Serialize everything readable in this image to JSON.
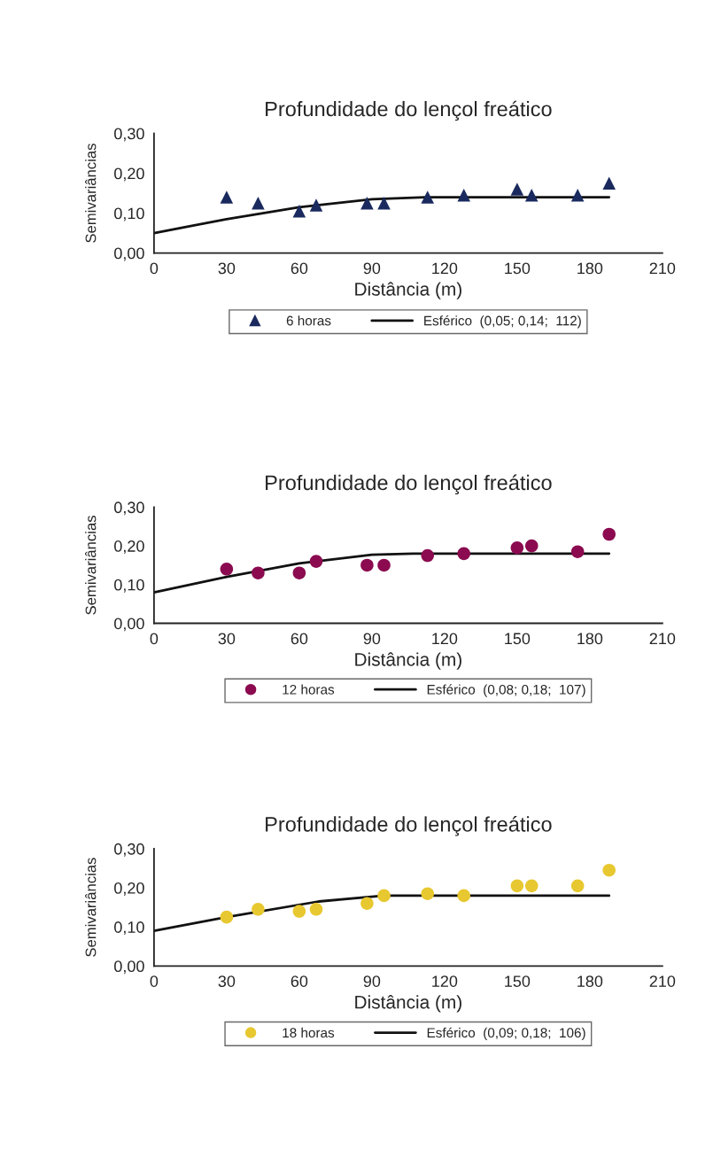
{
  "chart_data": [
    {
      "type": "scatter",
      "title": "Profundidade do lençol freático",
      "xlabel": "Distância (m)",
      "ylabel": "Semivariâncias",
      "xlim": [
        0,
        210
      ],
      "xticks": [
        0,
        30,
        60,
        90,
        120,
        150,
        180,
        210
      ],
      "ylim": [
        0,
        0.3
      ],
      "yticks": [
        {
          "value": 0,
          "label": "0,00"
        },
        {
          "value": 0.1,
          "label": "0,10"
        },
        {
          "value": 0.2,
          "label": "0,20"
        },
        {
          "value": 0.3,
          "label": "0,30"
        }
      ],
      "grid": false,
      "legend": "bottom",
      "series": [
        {
          "name": "6 horas",
          "marker": "triangle",
          "color": "#1a2a5e",
          "x": [
            30,
            43,
            60,
            67,
            88,
            95,
            113,
            128,
            150,
            156,
            175,
            188
          ],
          "values": [
            0.14,
            0.125,
            0.105,
            0.12,
            0.125,
            0.125,
            0.14,
            0.145,
            0.16,
            0.145,
            0.145,
            0.175
          ]
        },
        {
          "name": "Esférico  (0,05; 0,14;  112)",
          "type": "line",
          "marker": "none",
          "color": "#111111",
          "x": [
            0,
            30,
            60,
            90,
            112,
            188
          ],
          "values": [
            0.05,
            0.085,
            0.115,
            0.135,
            0.14,
            0.14
          ]
        }
      ]
    },
    {
      "type": "scatter",
      "title": "Profundidade do lençol freático",
      "xlabel": "Distância (m)",
      "ylabel": "Semivariâncias",
      "xlim": [
        0,
        210
      ],
      "xticks": [
        0,
        30,
        60,
        90,
        120,
        150,
        180,
        210
      ],
      "ylim": [
        0,
        0.3
      ],
      "yticks": [
        {
          "value": 0,
          "label": "0,00"
        },
        {
          "value": 0.1,
          "label": "0,10"
        },
        {
          "value": 0.2,
          "label": "0,20"
        },
        {
          "value": 0.3,
          "label": "0,30"
        }
      ],
      "grid": false,
      "legend": "bottom",
      "series": [
        {
          "name": "12 horas",
          "marker": "circle",
          "color": "#8b0a50",
          "x": [
            30,
            43,
            60,
            67,
            88,
            95,
            113,
            128,
            150,
            156,
            175,
            188
          ],
          "values": [
            0.14,
            0.13,
            0.13,
            0.16,
            0.15,
            0.15,
            0.175,
            0.18,
            0.195,
            0.2,
            0.185,
            0.23
          ]
        },
        {
          "name": "Esférico  (0,08; 0,18;  107)",
          "type": "line",
          "marker": "none",
          "color": "#111111",
          "x": [
            0,
            30,
            60,
            90,
            107,
            188
          ],
          "values": [
            0.08,
            0.12,
            0.155,
            0.177,
            0.18,
            0.18
          ]
        }
      ]
    },
    {
      "type": "scatter",
      "title": "Profundidade do lençol freático",
      "xlabel": "Distância (m)",
      "ylabel": "Semivariâncias",
      "xlim": [
        0,
        210
      ],
      "xticks": [
        0,
        30,
        60,
        90,
        120,
        150,
        180,
        210
      ],
      "ylim": [
        0,
        0.3
      ],
      "yticks": [
        {
          "value": 0,
          "label": "0,00"
        },
        {
          "value": 0.1,
          "label": "0,10"
        },
        {
          "value": 0.2,
          "label": "0,20"
        },
        {
          "value": 0.3,
          "label": "0,30"
        }
      ],
      "grid": false,
      "legend": "bottom",
      "series": [
        {
          "name": "18 horas",
          "marker": "circle",
          "color": "#e8c830",
          "x": [
            30,
            43,
            60,
            67,
            88,
            95,
            113,
            128,
            150,
            156,
            175,
            188
          ],
          "values": [
            0.125,
            0.145,
            0.14,
            0.145,
            0.16,
            0.18,
            0.185,
            0.18,
            0.205,
            0.205,
            0.205,
            0.245
          ]
        },
        {
          "name": "Esférico  (0,09; 0,18;  106)",
          "type": "line",
          "marker": "none",
          "color": "#111111",
          "x": [
            0,
            30,
            68,
            95,
            188
          ],
          "values": [
            0.09,
            0.125,
            0.165,
            0.18,
            0.18
          ]
        }
      ]
    }
  ]
}
